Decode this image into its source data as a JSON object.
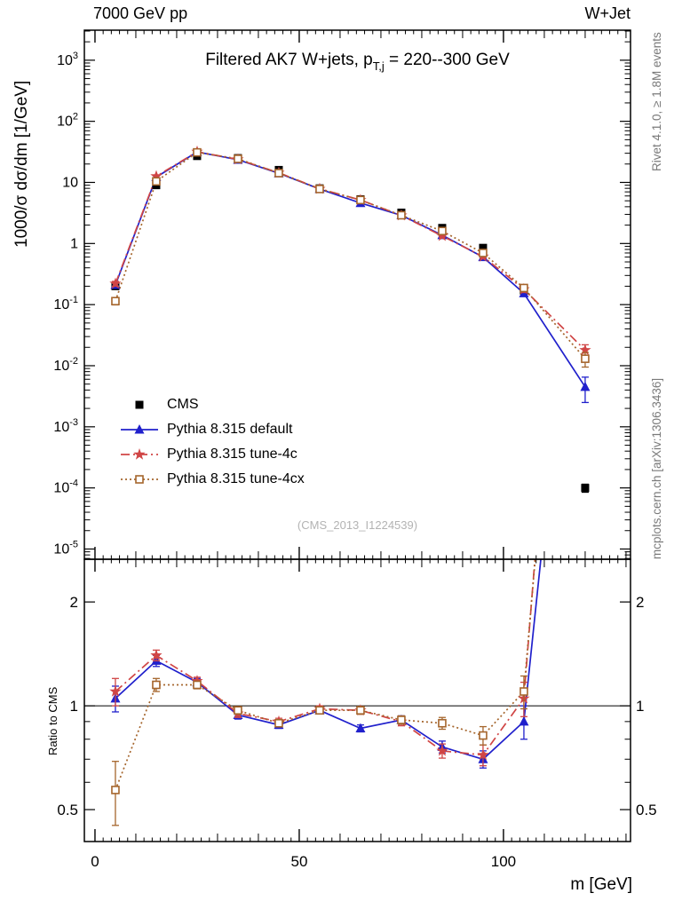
{
  "page": {
    "top_left_label": "7000 GeV pp",
    "top_right_label": "W+Jet",
    "watermark": "(CMS_2013_I1224539)",
    "right_margin_top": "Rivet 4.1.0, ≥ 1.8M events",
    "right_margin_bottom": "mcplots.cern.ch [arXiv:1306.3436]"
  },
  "chart_data": {
    "type": "line",
    "title": "Filtered AK7 W+jets, p_{T,j} = 220--300 GeV",
    "title_pre": "Filtered AK7 W+jets, p",
    "title_sub": "T,j",
    "title_post": " = 220--300 GeV",
    "xlabel": "m [GeV]",
    "ylabel": "1000/σ  dσ/dm [1/GeV]",
    "ratio_ylabel": "Ratio to CMS",
    "yscale": "log",
    "ratio_yscale": "log",
    "grid": false,
    "legend_position": "center-left",
    "xlim": [
      -2.6,
      131.1
    ],
    "ylim": [
      6.8e-06,
      3100
    ],
    "ratio_ylim": [
      0.404,
      2.66
    ],
    "xticks": [
      0,
      50,
      100
    ],
    "yticks_exponents": [
      3,
      2,
      1,
      0,
      -1,
      -2,
      -3,
      -4,
      -5
    ],
    "ratio_yticks": [
      0.5,
      1,
      2
    ],
    "x": [
      5,
      15,
      25,
      35,
      45,
      55,
      65,
      75,
      85,
      95,
      105,
      120
    ],
    "series": [
      {
        "name": "CMS",
        "color": "#000000",
        "marker": "filled-square",
        "line": "none",
        "y": [
          0.2,
          9.0,
          27,
          25,
          16,
          8.0,
          5.3,
          3.2,
          1.8,
          0.85,
          0.17,
          0.0001
        ],
        "yerr": [
          0.02,
          0.6,
          1.2,
          1.0,
          0.7,
          0.35,
          0.25,
          0.15,
          0.1,
          0.06,
          0.015,
          1.5e-05
        ]
      },
      {
        "name": "Pythia 8.315 default",
        "color": "#2020cc",
        "marker": "filled-triangle",
        "line": "solid",
        "y": [
          0.21,
          12.2,
          31.5,
          23.5,
          14.1,
          7.8,
          4.6,
          2.9,
          1.37,
          0.6,
          0.153,
          0.0045
        ],
        "yerr": [
          0.02,
          0.6,
          0.8,
          0.6,
          0.35,
          0.2,
          0.12,
          0.09,
          0.05,
          0.03,
          0.015,
          0.002
        ],
        "ratio": [
          1.05,
          1.35,
          1.17,
          0.94,
          0.88,
          0.97,
          0.86,
          0.91,
          0.76,
          0.7,
          0.9,
          45
        ],
        "ratio_err": [
          0.09,
          0.05,
          0.03,
          0.025,
          0.02,
          0.02,
          0.02,
          0.025,
          0.03,
          0.04,
          0.1,
          20
        ]
      },
      {
        "name": "Pythia 8.315 tune-4c",
        "color": "#d04545",
        "marker": "star",
        "line": "dash-dot",
        "y": [
          0.22,
          12.6,
          31.8,
          23.8,
          14.4,
          7.85,
          5.15,
          2.88,
          1.33,
          0.61,
          0.178,
          0.018
        ],
        "yerr": [
          0.02,
          0.6,
          0.8,
          0.6,
          0.35,
          0.2,
          0.12,
          0.09,
          0.05,
          0.03,
          0.02,
          0.004
        ],
        "ratio": [
          1.1,
          1.4,
          1.18,
          0.95,
          0.9,
          0.98,
          0.97,
          0.9,
          0.74,
          0.72,
          1.05,
          180
        ],
        "ratio_err": [
          0.1,
          0.05,
          0.03,
          0.025,
          0.02,
          0.02,
          0.025,
          0.025,
          0.035,
          0.05,
          0.12,
          60
        ]
      },
      {
        "name": "Pythia 8.315 tune-4cx",
        "color": "#a5652c",
        "marker": "open-square",
        "line": "dotted",
        "y": [
          0.114,
          10.4,
          31.0,
          24.3,
          14.2,
          7.8,
          5.15,
          2.9,
          1.6,
          0.7,
          0.187,
          0.013
        ],
        "yerr": [
          0.015,
          0.6,
          0.8,
          0.6,
          0.35,
          0.2,
          0.12,
          0.09,
          0.05,
          0.035,
          0.02,
          0.0035
        ],
        "ratio": [
          0.57,
          1.15,
          1.15,
          0.97,
          0.89,
          0.97,
          0.97,
          0.91,
          0.89,
          0.82,
          1.1,
          130
        ],
        "ratio_err": [
          0.12,
          0.05,
          0.03,
          0.025,
          0.02,
          0.02,
          0.025,
          0.025,
          0.035,
          0.05,
          0.12,
          45
        ]
      }
    ]
  }
}
